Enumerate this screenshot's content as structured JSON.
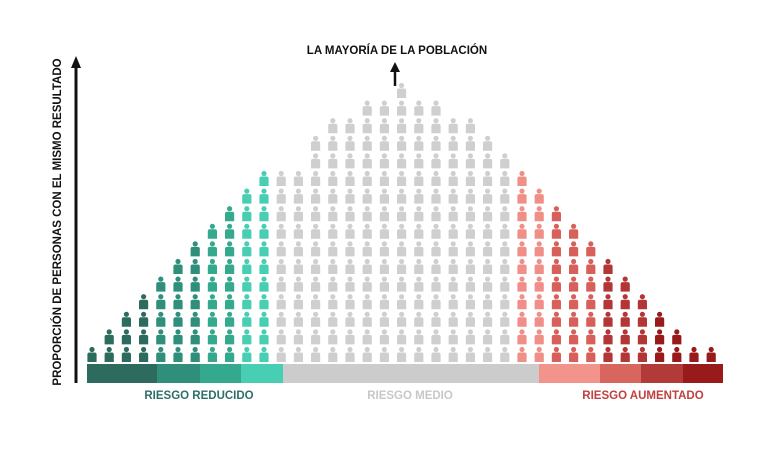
{
  "top_label": "LA MAYORÍA DE LA POBLACIÓN",
  "y_axis_label": "PROPORCIÓN DE PERSONAS CON EL MISMO RESULTADO",
  "segments": {
    "reduced": {
      "label": "RIESGO REDUCIDO",
      "label_color": "#2f6f6a"
    },
    "medium": {
      "label": "RIESGO MEDIO",
      "label_color": "#c8c8c8"
    },
    "increased": {
      "label": "RIESGO AUMENTADO",
      "label_color": "#c0413e"
    }
  },
  "colors": {
    "axis": "#111111",
    "gray_person": "#cfcfcf",
    "gray_bar": "#cccccc",
    "reduced_bars": [
      "#2d6b5f",
      "#2f8f7a",
      "#35a98e",
      "#48cfb3"
    ],
    "reduced_people": [
      "#2d6b5f",
      "#2f8f7a",
      "#35a98e",
      "#48cfb3"
    ],
    "increased_bars": [
      "#f2938c",
      "#d8655e",
      "#b23a38",
      "#981a1a"
    ],
    "increased_people": [
      "#f08f88",
      "#d8605a",
      "#b33636",
      "#981a1a"
    ]
  },
  "icons": {
    "person": "person-icon",
    "arrow": "arrow-up-icon"
  },
  "column_counts": [
    1,
    2,
    3,
    4,
    5,
    6,
    7,
    8,
    9,
    10,
    11,
    11,
    11,
    13,
    14,
    14,
    15,
    15,
    16,
    15,
    15,
    14,
    14,
    13,
    12,
    11,
    10,
    9,
    8,
    7,
    6,
    5,
    4,
    3,
    2,
    1,
    1
  ],
  "column_groups": [
    "r0",
    "r0",
    "r0",
    "r0",
    "r1",
    "r1",
    "r1",
    "r2",
    "r2",
    "r3",
    "r3",
    "m",
    "m",
    "m",
    "m",
    "m",
    "m",
    "m",
    "m",
    "m",
    "m",
    "m",
    "m",
    "m",
    "m",
    "i0",
    "i0",
    "i1",
    "i1",
    "i1",
    "i2",
    "i2",
    "i2",
    "i3",
    "i3",
    "i3",
    "i3"
  ]
}
